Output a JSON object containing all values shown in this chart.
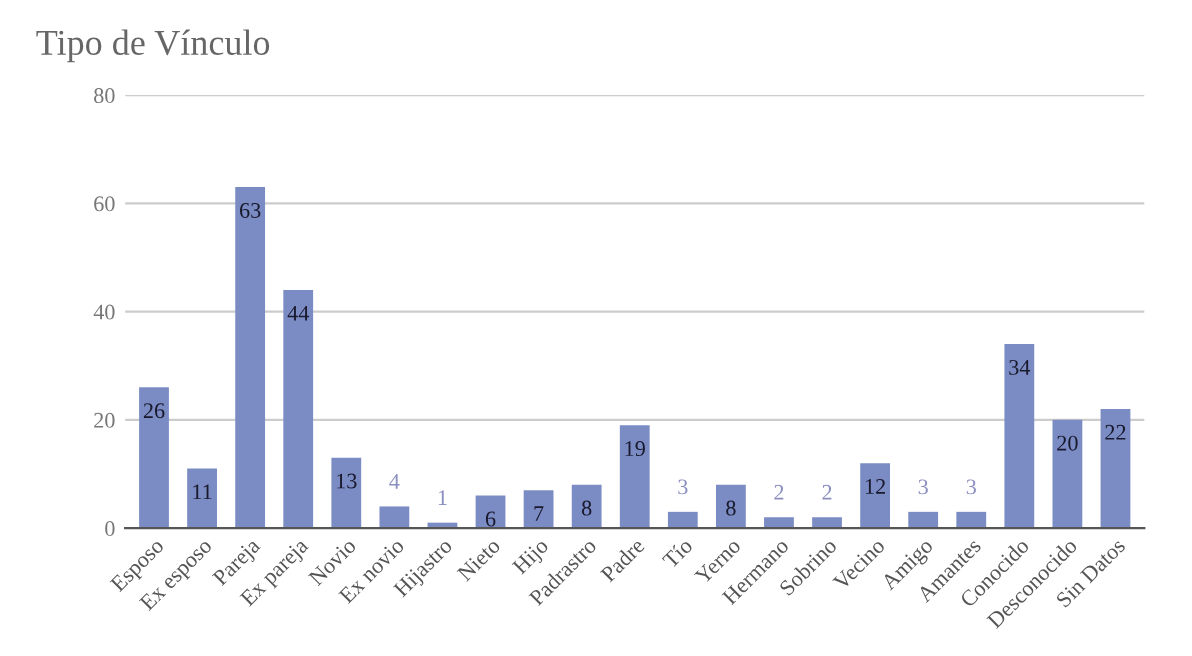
{
  "chart_data": {
    "type": "bar",
    "title": "Tipo de Vínculo",
    "categories": [
      "Esposo",
      "Ex esposo",
      "Pareja",
      "Ex pareja",
      "Novio",
      "Ex novio",
      "Hijastro",
      "Nieto",
      "Hijo",
      "Padrastro",
      "Padre",
      "Tío",
      "Yerno",
      "Hermano",
      "Sobrino",
      "Vecino",
      "Amigo",
      "Amantes",
      "Conocido",
      "Desconocido",
      "Sin Datos"
    ],
    "values": [
      26,
      11,
      63,
      44,
      13,
      4,
      1,
      6,
      7,
      8,
      19,
      3,
      8,
      2,
      2,
      12,
      3,
      3,
      34,
      20,
      22
    ],
    "color": "#7b8cc4",
    "ylim": [
      0,
      80
    ],
    "yticks": [
      0,
      20,
      40,
      60,
      80
    ],
    "grid": "y",
    "data_labels": true
  }
}
